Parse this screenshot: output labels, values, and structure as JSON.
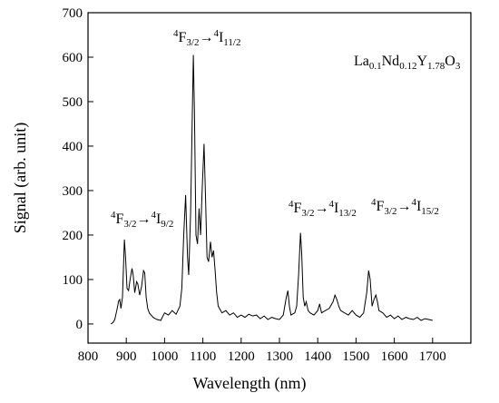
{
  "chart_data": {
    "type": "line",
    "x_label": "Wavelength (nm)",
    "y_label": "Signal (arb. unit)",
    "annotations": [
      [
        "4",
        "F",
        "3/2",
        "→",
        "4",
        "I",
        "11/2"
      ],
      [
        "4",
        "F",
        "3/2",
        "→",
        "4",
        "I",
        "9/2"
      ],
      [
        "4",
        "F",
        "3/2",
        "→",
        "4",
        "I",
        "13/2"
      ],
      [
        "4",
        "F",
        "3/2",
        "→",
        "4",
        "I",
        "15/2"
      ]
    ],
    "label": [
      "La",
      "0.1",
      "Nd",
      "0.12",
      "Y",
      "1.78",
      "O",
      "3"
    ],
    "color": "#000000",
    "x": [
      860,
      865,
      870,
      875,
      880,
      883,
      886,
      890,
      895,
      898,
      902,
      906,
      910,
      915,
      918,
      922,
      927,
      930,
      935,
      940,
      945,
      948,
      952,
      956,
      960,
      970,
      980,
      990,
      1000,
      1010,
      1020,
      1030,
      1040,
      1045,
      1050,
      1055,
      1060,
      1063,
      1068,
      1075,
      1078,
      1082,
      1086,
      1090,
      1094,
      1098,
      1103,
      1107,
      1111,
      1115,
      1120,
      1124,
      1128,
      1132,
      1136,
      1140,
      1150,
      1160,
      1170,
      1180,
      1190,
      1200,
      1210,
      1220,
      1230,
      1240,
      1250,
      1260,
      1270,
      1280,
      1290,
      1300,
      1310,
      1318,
      1322,
      1326,
      1330,
      1340,
      1345,
      1350,
      1355,
      1358,
      1362,
      1366,
      1370,
      1375,
      1380,
      1390,
      1400,
      1405,
      1410,
      1420,
      1430,
      1440,
      1445,
      1450,
      1455,
      1460,
      1470,
      1480,
      1490,
      1500,
      1510,
      1520,
      1528,
      1533,
      1537,
      1542,
      1547,
      1552,
      1556,
      1560,
      1570,
      1580,
      1590,
      1600,
      1610,
      1620,
      1630,
      1640,
      1650,
      1660,
      1670,
      1680,
      1690,
      1700
    ],
    "values": [
      0,
      3,
      10,
      30,
      52,
      55,
      35,
      60,
      190,
      150,
      80,
      75,
      100,
      125,
      110,
      70,
      95,
      90,
      65,
      85,
      120,
      115,
      60,
      35,
      25,
      15,
      10,
      8,
      25,
      20,
      30,
      22,
      40,
      80,
      200,
      290,
      150,
      110,
      250,
      605,
      480,
      200,
      180,
      260,
      200,
      300,
      405,
      280,
      150,
      140,
      185,
      150,
      165,
      120,
      70,
      40,
      25,
      30,
      20,
      25,
      15,
      20,
      15,
      22,
      18,
      20,
      12,
      18,
      10,
      15,
      12,
      10,
      20,
      60,
      75,
      40,
      20,
      25,
      40,
      110,
      205,
      160,
      60,
      40,
      50,
      30,
      25,
      20,
      30,
      45,
      25,
      30,
      35,
      50,
      65,
      55,
      40,
      30,
      25,
      20,
      30,
      20,
      15,
      25,
      70,
      120,
      100,
      40,
      55,
      65,
      50,
      30,
      25,
      15,
      20,
      12,
      18,
      10,
      15,
      12,
      10,
      15,
      8,
      12,
      10,
      8
    ],
    "xlim": [
      800,
      1800
    ],
    "ylim": [
      -43,
      700
    ],
    "xticks": [
      800,
      900,
      1000,
      1100,
      1200,
      1300,
      1400,
      1500,
      1600,
      1700
    ],
    "yticks": [
      0,
      100,
      200,
      300,
      400,
      500,
      600,
      700
    ],
    "grid": false
  }
}
